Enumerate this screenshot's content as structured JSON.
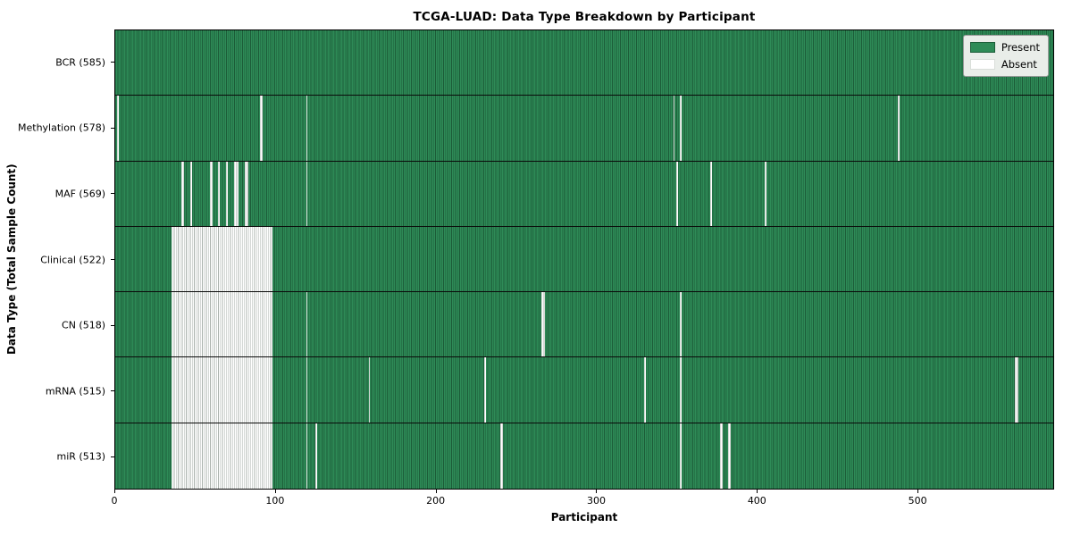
{
  "title": "TCGA-LUAD: Data Type Breakdown by Participant",
  "chart_data": {
    "type": "heatmap",
    "title": "TCGA-LUAD: Data Type Breakdown by Participant",
    "xlabel": "Participant",
    "ylabel": "Data Type (Total Sample Count)",
    "x_range": [
      0,
      585
    ],
    "total_participants": 585,
    "x_ticks": [
      0,
      100,
      200,
      300,
      400,
      500
    ],
    "legend": {
      "position": "upper right",
      "items": [
        {
          "label": "Present",
          "color": "#2e8b57"
        },
        {
          "label": "Absent",
          "color": "#ffffff"
        }
      ]
    },
    "colors": {
      "present_fill": "#2e8b57",
      "present_edge": "#1c5c38",
      "absent_fill": "#ffffff",
      "absent_edge": "#a9b1ab",
      "legend_background": "#e9ede9"
    },
    "rows": [
      {
        "name": "BCR",
        "label": "BCR (585)",
        "present_count": 585,
        "absent_ranges": []
      },
      {
        "name": "Methylation",
        "label": "Methylation (578)",
        "present_count": 578,
        "absent_ranges": [
          [
            1,
            2
          ],
          [
            90,
            92
          ],
          [
            119,
            120
          ],
          [
            348,
            349
          ],
          [
            352,
            353
          ],
          [
            488,
            489
          ]
        ]
      },
      {
        "name": "MAF",
        "label": "MAF (569)",
        "present_count": 569,
        "absent_ranges": [
          [
            41,
            43
          ],
          [
            47,
            48
          ],
          [
            59,
            61
          ],
          [
            64,
            65
          ],
          [
            69,
            70
          ],
          [
            74,
            77
          ],
          [
            81,
            83
          ],
          [
            119,
            120
          ],
          [
            350,
            351
          ],
          [
            371,
            372
          ],
          [
            405,
            406
          ]
        ]
      },
      {
        "name": "Clinical",
        "label": "Clinical (522)",
        "present_count": 522,
        "absent_ranges": [
          [
            35,
            98
          ]
        ]
      },
      {
        "name": "CN",
        "label": "CN (518)",
        "present_count": 518,
        "absent_ranges": [
          [
            35,
            98
          ],
          [
            119,
            120
          ],
          [
            266,
            268
          ],
          [
            352,
            353
          ]
        ]
      },
      {
        "name": "mRNA",
        "label": "mRNA (515)",
        "present_count": 515,
        "absent_ranges": [
          [
            35,
            98
          ],
          [
            119,
            120
          ],
          [
            158,
            159
          ],
          [
            230,
            231
          ],
          [
            330,
            331
          ],
          [
            352,
            353
          ],
          [
            561,
            563
          ]
        ]
      },
      {
        "name": "miR",
        "label": "miR (513)",
        "present_count": 513,
        "absent_ranges": [
          [
            35,
            98
          ],
          [
            119,
            120
          ],
          [
            125,
            126
          ],
          [
            240,
            242
          ],
          [
            352,
            353
          ],
          [
            377,
            379
          ],
          [
            382,
            384
          ]
        ]
      }
    ]
  }
}
